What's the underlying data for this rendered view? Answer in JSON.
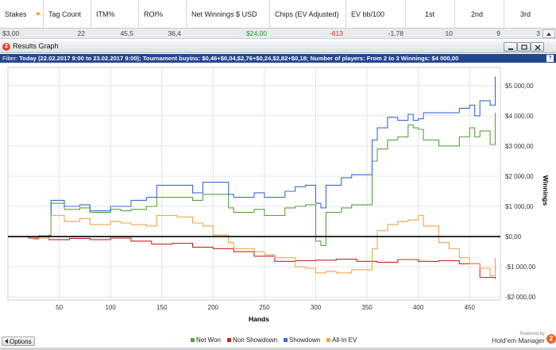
{
  "header": {
    "columns": [
      {
        "label": "Stakes",
        "value": "$3,00"
      },
      {
        "label": "Tag Count",
        "value": "22"
      },
      {
        "label": "ITM%",
        "value": "45,5"
      },
      {
        "label": "ROI%",
        "value": "36,4"
      },
      {
        "label": "Net Winnings $ USD",
        "value": "$24,00"
      },
      {
        "label": "Chips (EV Adjusted)",
        "value": "-613"
      },
      {
        "label": "EV bb/100",
        "value": "-1,78"
      },
      {
        "label": "1st",
        "value": "10"
      },
      {
        "label": "2nd",
        "value": "9"
      },
      {
        "label": "3rd",
        "value": "3"
      }
    ]
  },
  "window": {
    "title": "Results Graph"
  },
  "filter": {
    "label": "Filter:",
    "text": "Today (22.02.2017 9:00 to 23.02.2017 9:00); Tournament buyins: $0,46+$0,04,$2,76+$0,24,$2,82+$0,18; Number of players: From 2 to 3 Winnings: $4 000,00"
  },
  "footer": {
    "options_label": "Options",
    "powered_by": "Powered by",
    "brand": "Hold'em Manager",
    "brand_logo": "2"
  },
  "colors": {
    "net_won": "#58a03a",
    "non_showdown": "#c82222",
    "showdown": "#3c68d8",
    "all_in_ev": "#f2a44a"
  },
  "chart_data": {
    "type": "line",
    "title": "",
    "xlabel": "Hands",
    "ylabel": "Winnings",
    "x_ticks": [
      50,
      100,
      150,
      200,
      250,
      300,
      350,
      400,
      450
    ],
    "y_ticks": [
      -2000,
      -1000,
      0,
      1000,
      2000,
      3000,
      4000,
      5000
    ],
    "y_tick_labels": [
      "-$2 000,00",
      "-$1 000,00",
      "$0,00",
      "$1 000,00",
      "$2 000,00",
      "$3 000,00",
      "$4 000,00",
      "$5 000,00"
    ],
    "xlim": [
      0,
      480
    ],
    "ylim": [
      -2100,
      5600
    ],
    "grid": true,
    "legend": "bottom",
    "series": [
      {
        "name": "Net Won",
        "color": "#58a03a",
        "x": [
          0,
          25,
          30,
          40,
          42,
          55,
          70,
          80,
          100,
          110,
          120,
          135,
          145,
          165,
          180,
          190,
          215,
          220,
          240,
          250,
          270,
          280,
          290,
          300,
          305,
          310,
          325,
          335,
          355,
          360,
          370,
          380,
          390,
          395,
          400,
          405,
          420,
          430,
          440,
          450,
          455,
          460,
          470,
          475
        ],
        "y": [
          0,
          -80,
          20,
          40,
          1100,
          900,
          950,
          800,
          900,
          850,
          900,
          1000,
          1300,
          1300,
          1200,
          1400,
          950,
          800,
          900,
          700,
          950,
          1000,
          1050,
          -150,
          -300,
          800,
          950,
          1050,
          2500,
          2900,
          3200,
          3300,
          3700,
          3600,
          3550,
          3200,
          3000,
          3000,
          3300,
          3600,
          3300,
          3500,
          3050,
          4100
        ]
      },
      {
        "name": "Non Showdown",
        "color": "#c82222",
        "x": [
          0,
          20,
          40,
          60,
          80,
          100,
          120,
          140,
          160,
          180,
          200,
          220,
          240,
          260,
          280,
          300,
          320,
          340,
          360,
          380,
          400,
          420,
          440,
          460,
          475
        ],
        "y": [
          0,
          -50,
          -100,
          -60,
          -100,
          -50,
          -150,
          -250,
          -220,
          -350,
          -400,
          -500,
          -650,
          -820,
          -800,
          -780,
          -750,
          -820,
          -850,
          -760,
          -820,
          -800,
          -900,
          -1350,
          -1400
        ]
      },
      {
        "name": "Showdown",
        "color": "#3c68d8",
        "x": [
          0,
          25,
          30,
          40,
          42,
          55,
          70,
          80,
          100,
          110,
          120,
          135,
          145,
          165,
          180,
          190,
          215,
          220,
          240,
          250,
          270,
          280,
          290,
          300,
          305,
          310,
          325,
          335,
          355,
          360,
          370,
          380,
          390,
          395,
          400,
          405,
          420,
          430,
          440,
          450,
          455,
          460,
          470,
          475
        ],
        "y": [
          0,
          -80,
          20,
          40,
          1200,
          1000,
          1050,
          850,
          1000,
          1000,
          1200,
          1300,
          1700,
          1700,
          1450,
          1800,
          1400,
          1300,
          1450,
          1300,
          1500,
          1650,
          1700,
          1100,
          950,
          1700,
          1950,
          2050,
          3200,
          3600,
          3950,
          3850,
          4050,
          3850,
          3900,
          4100,
          4100,
          4100,
          4250,
          4350,
          4000,
          4500,
          4350,
          5300
        ]
      },
      {
        "name": "All-In EV",
        "color": "#f2a44a",
        "x": [
          0,
          25,
          30,
          40,
          42,
          55,
          70,
          80,
          100,
          110,
          120,
          135,
          145,
          165,
          180,
          190,
          200,
          215,
          220,
          240,
          250,
          260,
          280,
          290,
          300,
          310,
          320,
          335,
          355,
          360,
          370,
          380,
          390,
          400,
          405,
          420,
          430,
          440,
          450,
          460,
          470,
          475
        ],
        "y": [
          0,
          -80,
          -50,
          0,
          700,
          500,
          600,
          400,
          500,
          450,
          400,
          350,
          700,
          650,
          450,
          350,
          50,
          -200,
          -400,
          -500,
          -600,
          -700,
          -1000,
          -1050,
          -1200,
          -1150,
          -1200,
          -1100,
          -400,
          200,
          400,
          500,
          550,
          700,
          350,
          -200,
          -400,
          -700,
          -900,
          -1050,
          -1300,
          -700
        ]
      }
    ]
  }
}
